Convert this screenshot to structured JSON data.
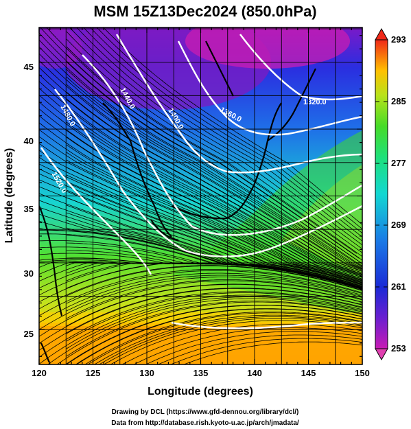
{
  "title": "MSM 15Z13Dec2024 (850.0hPa)",
  "xlabel": "Longitude (degrees)",
  "ylabel": "Latitude  (degrees)",
  "x_ticks": [
    "120",
    "125",
    "130",
    "135",
    "140",
    "145",
    "150"
  ],
  "y_ticks": [
    "25",
    "30",
    "35",
    "40",
    "45"
  ],
  "colorbar_ticks": [
    "293",
    "285",
    "277",
    "269",
    "261",
    "253"
  ],
  "contour_labels": [
    "1320.0",
    "1360.0",
    "1400.0",
    "1440.0",
    "1480.0",
    "1520.0"
  ],
  "credit_line1": "Drawing by DCL (https://www.gfd-dennou.org/library/dcl/)",
  "credit_line2": "Data from http://database.rish.kyoto-u.ac.jp/arch/jmadata/",
  "colors": {
    "low": "#d81fb7",
    "mid_low": "#1a2ad6",
    "mid": "#12d7d2",
    "mid_high": "#3fdb28",
    "high": "#ffa800",
    "top": "#f02818"
  },
  "chart_data": {
    "type": "heatmap",
    "title": "MSM 15Z13Dec2024 (850.0hPa)",
    "xlabel": "Longitude (degrees)",
    "ylabel": "Latitude  (degrees)",
    "xlim": [
      120,
      150
    ],
    "ylim": [
      22.4,
      47.6
    ],
    "colorbar_range": [
      253,
      293
    ],
    "colorbar_ticks": [
      253,
      261,
      269,
      277,
      285,
      293
    ],
    "contours": [
      1320,
      1360,
      1400,
      1440,
      1480,
      1520
    ],
    "overlays": [
      "streamlines",
      "coastlines",
      "geopotential height contours"
    ]
  }
}
